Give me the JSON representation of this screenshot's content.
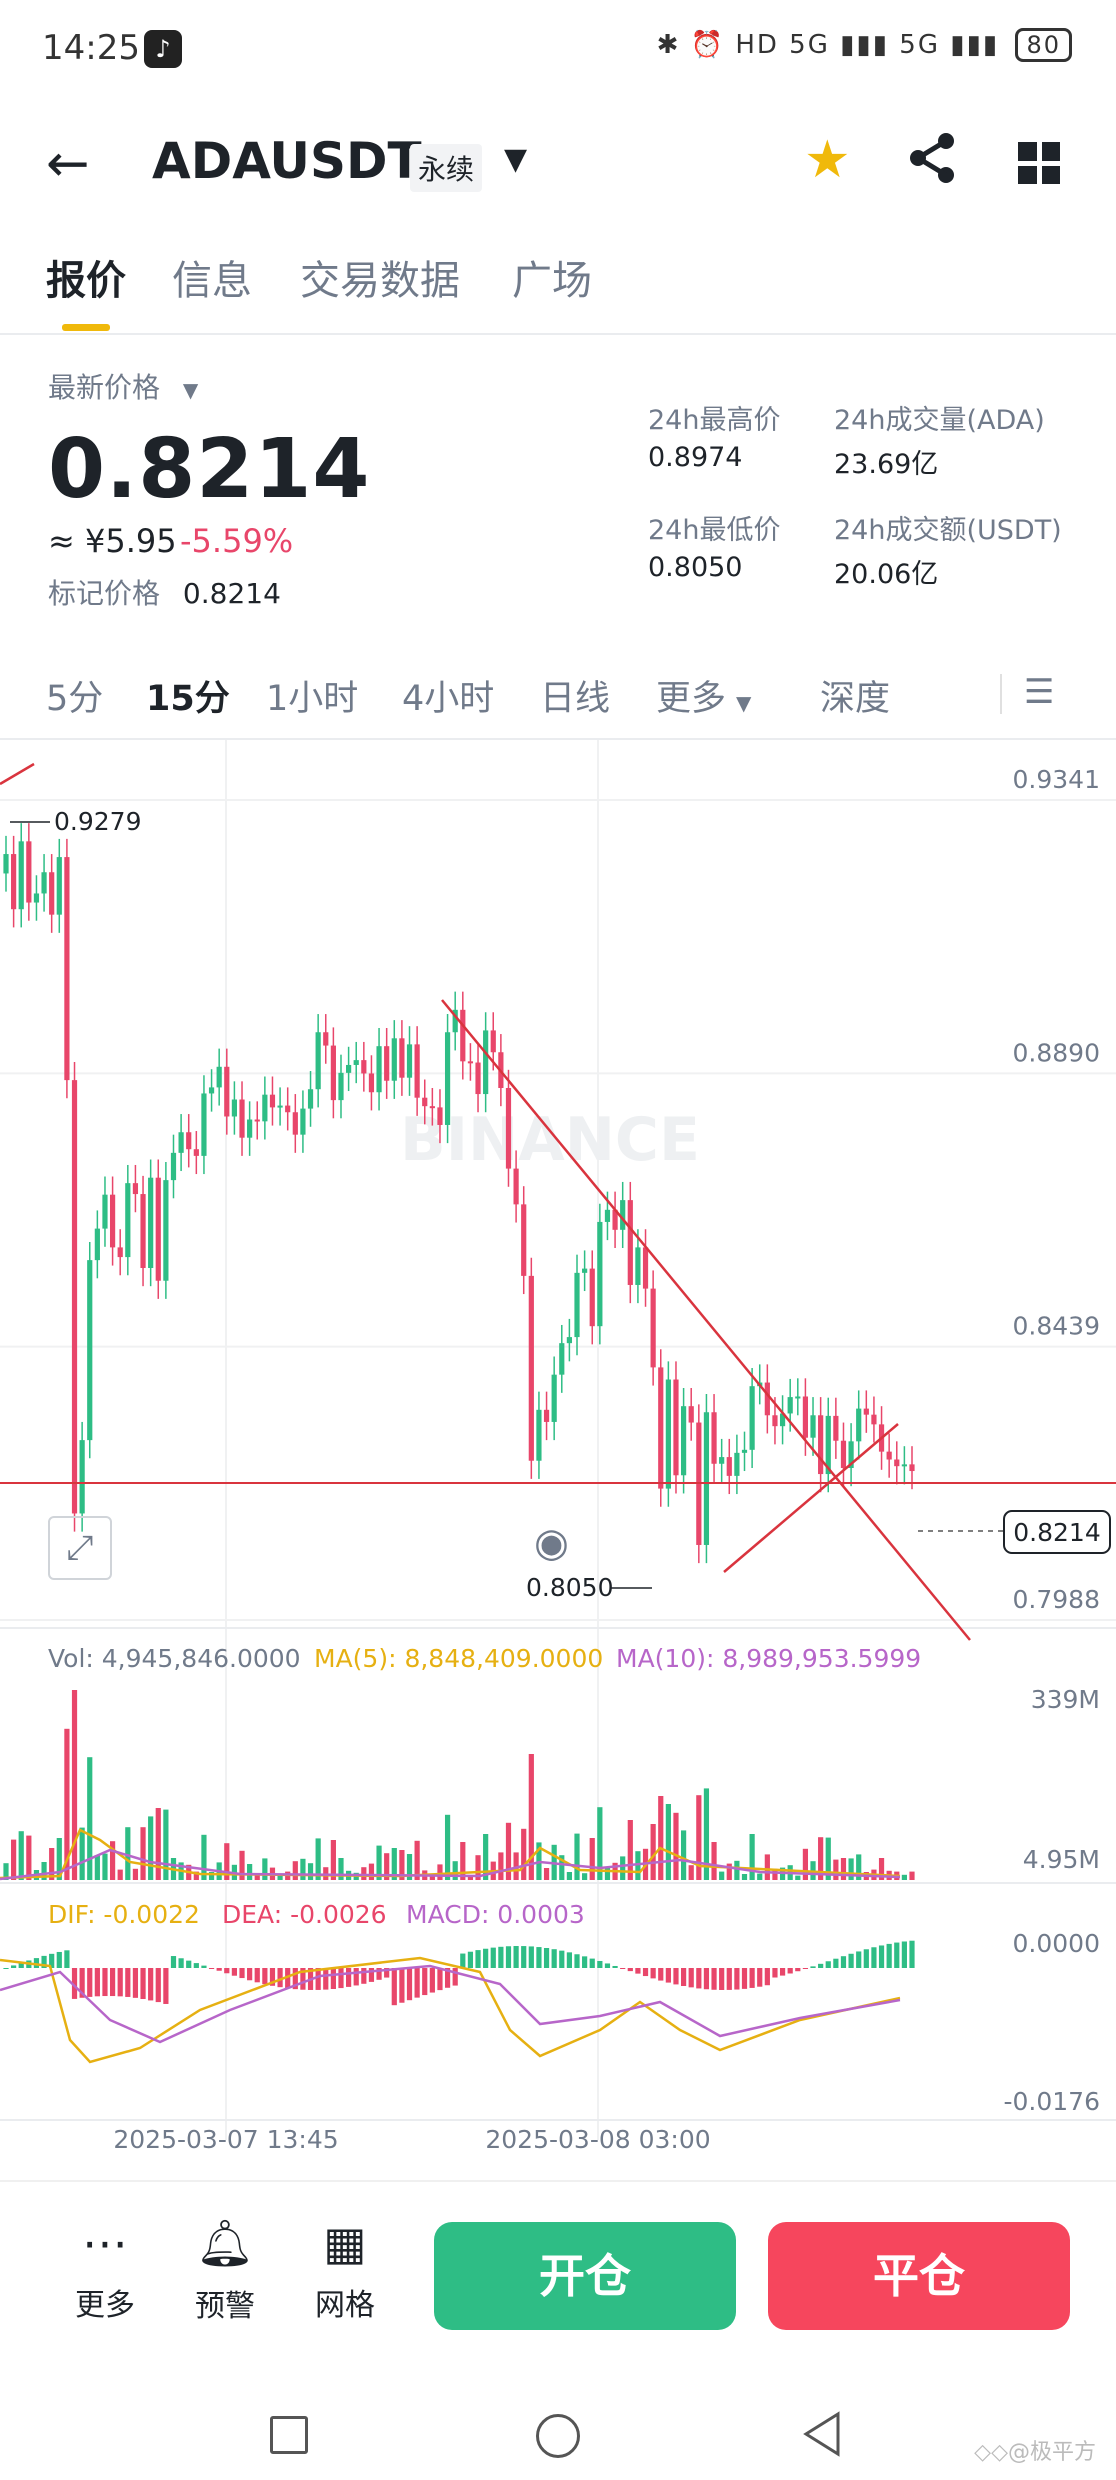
{
  "status_bar": {
    "time": "14:25",
    "indicators": "✱ ⏰ HD 5G ▮▮▮ 5G ▮▮▮",
    "battery": "80"
  },
  "header": {
    "symbol": "ADAUSDT",
    "contract_type": "永续",
    "icons": [
      "back-arrow-icon",
      "dropdown-caret-icon",
      "star-icon",
      "share-icon",
      "grid-icon"
    ],
    "star_color": "#f0b90b"
  },
  "tabs": [
    "报价",
    "信息",
    "交易数据",
    "广场"
  ],
  "price": {
    "last_label": "最新价格",
    "last": "0.8214",
    "cny": "≈ ¥5.95",
    "change": "-5.59%",
    "mark_label": "标记价格",
    "mark": "0.8214",
    "change_color": "#e8466a"
  },
  "stats": [
    {
      "label": "24h最高价",
      "value": "0.8974"
    },
    {
      "label": "24h成交量(ADA)",
      "value": "23.69亿"
    },
    {
      "label": "24h最低价",
      "value": "0.8050"
    },
    {
      "label": "24h成交额(USDT)",
      "value": "20.06亿"
    }
  ],
  "intervals": [
    "5分",
    "15分",
    "1小时",
    "4小时",
    "日线",
    "更多",
    "深度"
  ],
  "chart_data": {
    "type": "candlestick",
    "price_axis_ticks": [
      "0.9341",
      "0.8890",
      "0.8439",
      "0.7988"
    ],
    "price_ticks_values": [
      0.9341,
      0.889,
      0.8439,
      0.7988
    ],
    "annotations": {
      "high": "0.9279",
      "low": "0.8050",
      "current": "0.8214"
    },
    "watermark": "BINANCE",
    "x_labels": [
      "2025-03-07 13:45",
      "2025-03-08 03:00"
    ],
    "volume_legend": {
      "vol": "Vol: 4,945,846.0000",
      "ma5": "MA(5): 8,848,409.0000",
      "ma10": "MA(10): 8,989,953.5999"
    },
    "volume_ticks": [
      "339M",
      "4.95M"
    ],
    "macd_legend": {
      "dif": "DIF: -0.0022",
      "dea": "DEA: -0.0026",
      "macd": "MACD: 0.0003"
    },
    "macd_ticks": [
      "0.0000",
      "-0.0176"
    ],
    "closes": [
      0.9232,
      0.9141,
      0.9253,
      0.9152,
      0.9167,
      0.9202,
      0.9132,
      0.9227,
      0.8859,
      0.8144,
      0.8265,
      0.8562,
      0.8614,
      0.867,
      0.8583,
      0.8567,
      0.8689,
      0.8671,
      0.8549,
      0.8698,
      0.8528,
      0.8694,
      0.8739,
      0.8773,
      0.8745,
      0.8734,
      0.8837,
      0.8847,
      0.8881,
      0.8799,
      0.8827,
      0.8764,
      0.8794,
      0.8791,
      0.8835,
      0.8814,
      0.8817,
      0.8806,
      0.8769,
      0.8812,
      0.8844,
      0.8938,
      0.8916,
      0.8826,
      0.8871,
      0.8884,
      0.8892,
      0.887,
      0.8839,
      0.8915,
      0.8858,
      0.8928,
      0.8863,
      0.8918,
      0.883,
      0.8816,
      0.8814,
      0.8785,
      0.8938,
      0.8975,
      0.889,
      0.8888,
      0.8836,
      0.8941,
      0.8905,
      0.8846,
      0.8713,
      0.8654,
      0.8536,
      0.8231,
      0.8315,
      0.8295,
      0.8373,
      0.8425,
      0.8435,
      0.8541,
      0.8548,
      0.8453,
      0.8625,
      0.8645,
      0.8612,
      0.8661,
      0.8521,
      0.8583,
      0.8515,
      0.8385,
      0.8185,
      0.8365,
      0.8207,
      0.8321,
      0.8294,
      0.8092,
      0.8311,
      0.8226,
      0.8237,
      0.8206,
      0.8244,
      0.8249,
      0.8354,
      0.836,
      0.8306,
      0.8288,
      0.8309,
      0.8336,
      0.8337,
      0.8269,
      0.8306,
      0.8209,
      0.8305,
      0.8264,
      0.8219,
      0.8263,
      0.8317,
      0.8307,
      0.8291,
      0.8246,
      0.8233,
      0.8222,
      0.8225,
      0.8214
    ],
    "opens": [
      0.92,
      0.9232,
      0.9141,
      0.9253,
      0.9152,
      0.9167,
      0.9202,
      0.9132,
      0.9227,
      0.8859,
      0.8144,
      0.8265,
      0.8562,
      0.8614,
      0.867,
      0.8583,
      0.8567,
      0.8689,
      0.8671,
      0.8549,
      0.8698,
      0.8528,
      0.8694,
      0.8739,
      0.8773,
      0.8745,
      0.8734,
      0.8837,
      0.8847,
      0.8881,
      0.8799,
      0.8827,
      0.8764,
      0.8794,
      0.8791,
      0.8835,
      0.8814,
      0.8817,
      0.8806,
      0.8769,
      0.8812,
      0.8844,
      0.8938,
      0.8916,
      0.8826,
      0.8871,
      0.8884,
      0.8892,
      0.887,
      0.8839,
      0.8915,
      0.8858,
      0.8928,
      0.8863,
      0.8918,
      0.883,
      0.8816,
      0.8814,
      0.8785,
      0.8938,
      0.8975,
      0.889,
      0.8888,
      0.8836,
      0.8941,
      0.8905,
      0.8846,
      0.8713,
      0.8654,
      0.8536,
      0.8231,
      0.8315,
      0.8295,
      0.8373,
      0.8425,
      0.8435,
      0.8541,
      0.8548,
      0.8453,
      0.8625,
      0.8645,
      0.8612,
      0.8661,
      0.8521,
      0.8583,
      0.8515,
      0.8385,
      0.8185,
      0.8365,
      0.8207,
      0.8321,
      0.8294,
      0.8092,
      0.8311,
      0.8226,
      0.8237,
      0.8206,
      0.8244,
      0.8249,
      0.8354,
      0.836,
      0.8306,
      0.8288,
      0.8309,
      0.8336,
      0.8337,
      0.8269,
      0.8306,
      0.8209,
      0.8305,
      0.8264,
      0.8219,
      0.8263,
      0.8317,
      0.8307,
      0.8291,
      0.8246,
      0.8233,
      0.8222,
      0.8225
    ],
    "colors": {
      "up": "#2ebd85",
      "down": "#e8466a",
      "ma5": "#e6b012",
      "ma10": "#b766c9",
      "trend": "#d9343e"
    }
  },
  "bottom": {
    "tools": [
      "更多",
      "预警",
      "网格"
    ],
    "open_label": "开仓",
    "close_label": "平仓"
  },
  "watermark": "◇◇@极平方"
}
